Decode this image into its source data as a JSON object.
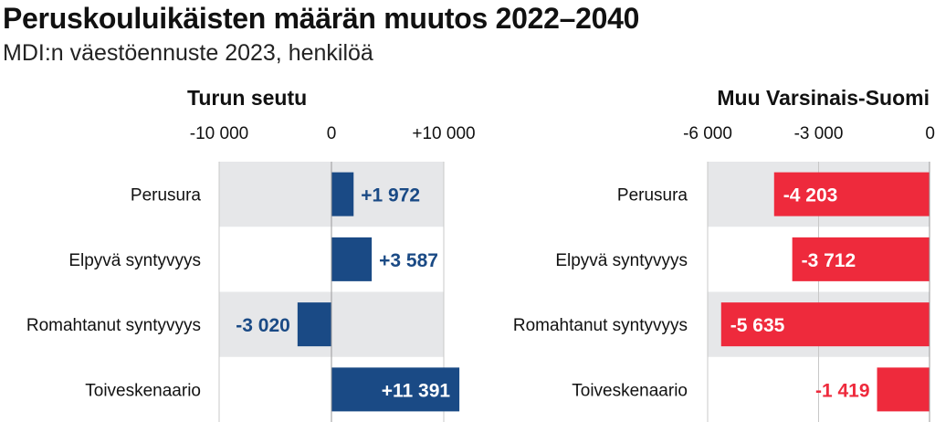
{
  "title": "Peruskouluikäisten määrän muutos 2022–2040",
  "subtitle": "MDI:n väestöennuste 2023, henkilöä",
  "colors": {
    "positive": "#1a4a85",
    "negative": "#ee2a3c",
    "band": "#e6e7e9",
    "grid": "#c8c8c8"
  },
  "chart_data": [
    {
      "type": "bar",
      "orientation": "horizontal",
      "title": "Turun seutu",
      "categories": [
        "Perusura",
        "Elpyvä syntyvyys",
        "Romahtanut syntyvyys",
        "Toiveskenaario"
      ],
      "values": [
        1972,
        3587,
        -3020,
        11391
      ],
      "value_labels": [
        "+1 972",
        "+3 587",
        "-3 020",
        "+11 391"
      ],
      "xlim": [
        -10000,
        10000
      ],
      "ticks": [
        -10000,
        0,
        10000
      ],
      "tick_labels": [
        "-10 000",
        "0",
        "+10 000"
      ],
      "color": "#1a4a85"
    },
    {
      "type": "bar",
      "orientation": "horizontal",
      "title": "Muu Varsinais-Suomi",
      "categories": [
        "Perusura",
        "Elpyvä syntyvyys",
        "Romahtanut syntyvyys",
        "Toiveskenaario"
      ],
      "values": [
        -4203,
        -3712,
        -5635,
        -1419
      ],
      "value_labels": [
        "-4 203",
        "-3 712",
        "-5 635",
        "-1 419"
      ],
      "xlim": [
        -6000,
        0
      ],
      "ticks": [
        -6000,
        -3000,
        0
      ],
      "tick_labels": [
        "-6 000",
        "-3 000",
        "0"
      ],
      "color": "#ee2a3c"
    }
  ]
}
